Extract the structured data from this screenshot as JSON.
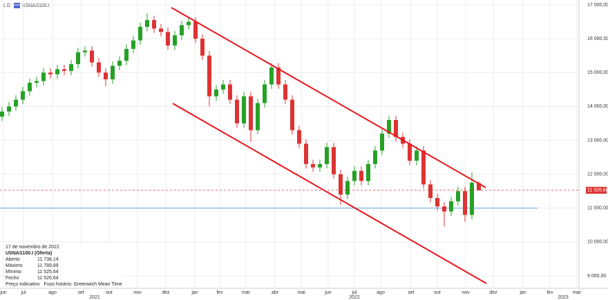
{
  "chart_data": {
    "type": "candlestick",
    "header": {
      "period": "1 D",
      "symbol": "USNAS100.I"
    },
    "ylim": [
      9000,
      17000
    ],
    "yticks": [
      {
        "value": 9000,
        "label": "9 000,00"
      },
      {
        "value": 10000,
        "label": "10 000,00"
      },
      {
        "value": 11000,
        "label": "11 000,00"
      },
      {
        "value": 12000,
        "label": "12 000,00"
      },
      {
        "value": 13000,
        "label": "13 000,00"
      },
      {
        "value": 14000,
        "label": "14 000,00"
      },
      {
        "value": 15000,
        "label": "15 000,00"
      },
      {
        "value": 16000,
        "label": "16 000,00"
      },
      {
        "value": 17000,
        "label": "17 000,00"
      }
    ],
    "months": [
      "jun",
      "jul",
      "ago",
      "set",
      "out",
      "nov",
      "dez",
      "jan",
      "fev",
      "mar",
      "abr",
      "mai",
      "jun",
      "jul",
      "ago",
      "set",
      "out",
      "nov",
      "dez",
      "jan",
      "fev",
      "mar"
    ],
    "years": [
      "2021",
      "2022",
      "2023"
    ],
    "grid": true,
    "up_color": "#26a126",
    "down_color": "#dd3333",
    "open": [
      13700,
      13850,
      14000,
      14200,
      14450,
      14700,
      14750,
      15000,
      14950,
      15100,
      15050,
      15250,
      15600,
      15650,
      15300,
      15000,
      14800,
      15200,
      15350,
      15700,
      15950,
      16350,
      16550,
      16300,
      16200,
      15800,
      16100,
      16400,
      16500,
      16000,
      15500,
      14300,
      14500,
      14650,
      14200,
      13500,
      14300,
      13300,
      14100,
      14650,
      15150,
      14650,
      14200,
      13300,
      12900,
      12300,
      12200,
      12300,
      12800,
      12000,
      11400,
      11800,
      12100,
      11800,
      12300,
      12700,
      13200,
      13600,
      13100,
      12900,
      12400,
      12700,
      11700,
      11300,
      11050,
      10900,
      11200,
      11500,
      10800,
      11738.14
    ],
    "high": [
      13980,
      14130,
      14330,
      14580,
      14830,
      14880,
      15130,
      15130,
      15230,
      15230,
      15380,
      15730,
      15780,
      15780,
      15430,
      15130,
      15330,
      15480,
      15830,
      16080,
      16480,
      16750,
      16680,
      16430,
      16330,
      16230,
      16530,
      16630,
      16630,
      16130,
      15630,
      14630,
      14780,
      14780,
      14330,
      14430,
      14430,
      14230,
      14780,
      15280,
      15280,
      14780,
      14330,
      13430,
      13030,
      12430,
      12430,
      12930,
      12930,
      12130,
      11930,
      12230,
      12230,
      12430,
      12830,
      13330,
      13730,
      13730,
      13230,
      13030,
      12830,
      12830,
      11830,
      11430,
      11180,
      11330,
      11630,
      11630,
      12050,
      11789.89
    ],
    "low": [
      13570,
      13720,
      13870,
      14070,
      14320,
      14570,
      14620,
      14820,
      14820,
      14920,
      14920,
      15120,
      15470,
      15170,
      14870,
      14600,
      14670,
      15070,
      15220,
      15570,
      15820,
      16220,
      16170,
      16070,
      15670,
      15670,
      15970,
      16270,
      15870,
      15370,
      14000,
      14170,
      14370,
      14070,
      13370,
      13370,
      12950,
      13170,
      13970,
      14520,
      14520,
      14070,
      13170,
      12770,
      12170,
      12070,
      12070,
      12170,
      11870,
      11100,
      11270,
      11670,
      11670,
      11670,
      12170,
      12570,
      13070,
      12970,
      12770,
      12270,
      12270,
      11570,
      11170,
      10920,
      10450,
      10770,
      11070,
      10600,
      10670,
      11525.64
    ],
    "close": [
      13850,
      14000,
      14200,
      14450,
      14700,
      14750,
      15000,
      14950,
      15100,
      15050,
      15250,
      15600,
      15650,
      15300,
      15000,
      14800,
      15200,
      15350,
      15700,
      15950,
      16350,
      16550,
      16300,
      16200,
      15800,
      16100,
      16400,
      16500,
      16000,
      15500,
      14300,
      14500,
      14650,
      14200,
      13500,
      14300,
      13300,
      14100,
      14650,
      15150,
      14650,
      14200,
      13300,
      12900,
      12300,
      12200,
      12300,
      12800,
      12000,
      11400,
      11800,
      12100,
      11800,
      12300,
      12700,
      13200,
      13600,
      13100,
      12900,
      12400,
      12700,
      11700,
      11300,
      11050,
      10900,
      11200,
      11500,
      10800,
      11750,
      11526.64
    ],
    "last_price": {
      "value": 11526.64,
      "label": "11 526,64",
      "color": "#dd3333"
    },
    "support_level": {
      "value": 11000,
      "color": "#7fb2e5"
    },
    "info": {
      "date": "17 de novembro de 2022",
      "instrument": "USNAS100.I (Oferta)",
      "rows": [
        [
          "Aberto",
          "11 738,14"
        ],
        [
          "Máximo",
          "11 789,89"
        ],
        [
          "Mínimo",
          "11 525,64"
        ],
        [
          "Fecho",
          "11 526,64"
        ]
      ],
      "note": "Preço indicativo",
      "timezone": "Fuso horário: Greenwich Mean Time"
    }
  }
}
